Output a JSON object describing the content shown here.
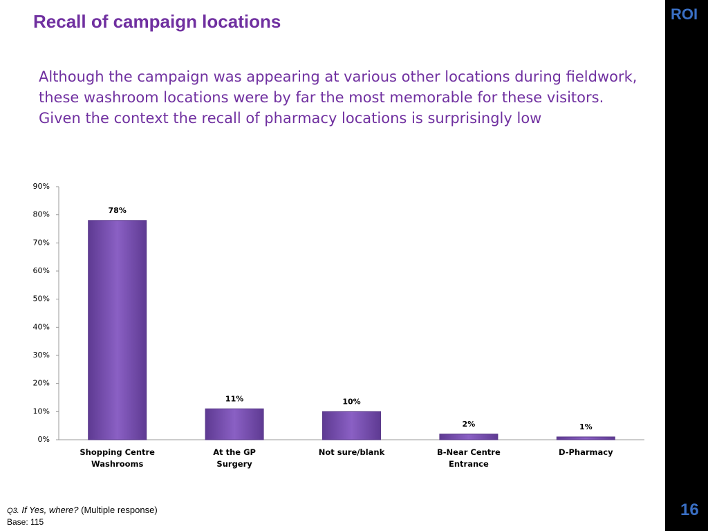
{
  "chart_data": {
    "type": "bar",
    "title": "Recall of campaign locations",
    "subtitle": "Although the campaign was appearing at various other locations during fieldwork, these washroom locations were by far the most memorable for these visitors. Given the context the recall of pharmacy locations is surprisingly low",
    "categories": [
      "Shopping Centre Washrooms",
      "At the GP Surgery",
      "Not sure/blank",
      "B-Near Centre Entrance",
      "D-Pharmacy"
    ],
    "values": [
      78,
      11,
      10,
      2,
      1
    ],
    "value_labels": [
      "78%",
      "11%",
      "10%",
      "2%",
      "1%"
    ],
    "color": "#7b4fb5",
    "ylim": [
      0,
      90
    ],
    "yticks": [
      {
        "value": 0,
        "label": "0%"
      },
      {
        "value": 10,
        "label": "10%"
      },
      {
        "value": 20,
        "label": "20%"
      },
      {
        "value": 30,
        "label": "30%"
      },
      {
        "value": 40,
        "label": "40%"
      },
      {
        "value": 50,
        "label": "50%"
      },
      {
        "value": 60,
        "label": "60%"
      },
      {
        "value": 70,
        "label": "70%"
      },
      {
        "value": 80,
        "label": "80%"
      },
      {
        "value": 90,
        "label": "90%"
      }
    ],
    "grid": false
  },
  "footer": {
    "question_number": "Q3.",
    "question": "If Yes, where?",
    "note": "(Multiple response)",
    "base": "Base: 115",
    "page_number": "16",
    "logo": "ROI"
  }
}
